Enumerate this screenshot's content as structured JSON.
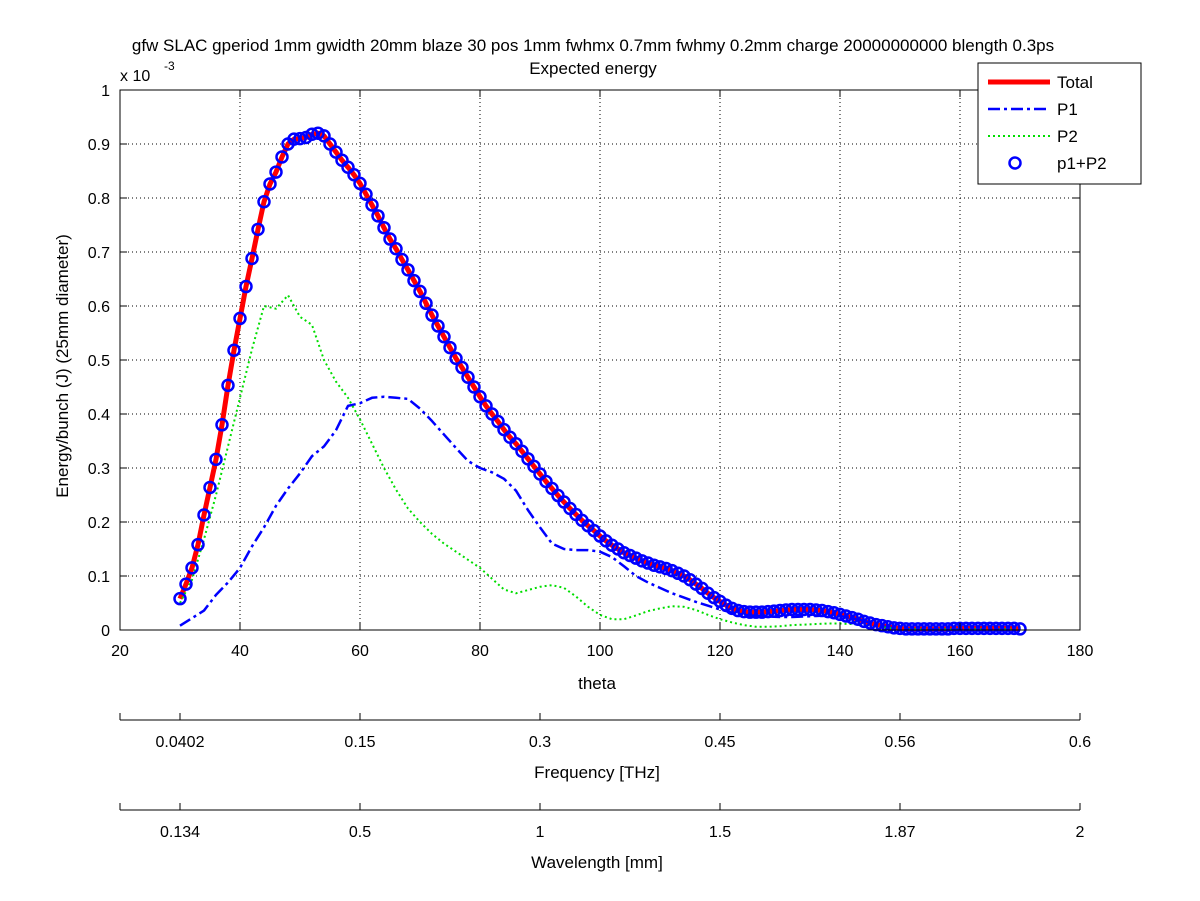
{
  "chart_data": {
    "type": "line",
    "title": "gfw SLAC gperiod 1mm gwidth 20mm blaze 30 pos 1mm fwhmx 0.7mm fwhmy 0.2mm charge 20000000000 blength 0.3ps",
    "subtitle": "Expected energy",
    "xlabel": "theta",
    "ylabel": "Energy/bunch (J) (25mm diameter)",
    "y_exponent_label": "x 10",
    "y_exponent_power": "-3",
    "xlim": [
      20,
      180
    ],
    "ylim": [
      0,
      1
    ],
    "grid": true,
    "legend_position": "top-right",
    "x_ticks": [
      "20",
      "40",
      "60",
      "80",
      "100",
      "120",
      "140",
      "160",
      "180"
    ],
    "y_ticks": [
      "0",
      "0.1",
      "0.2",
      "0.3",
      "0.4",
      "0.5",
      "0.6",
      "0.7",
      "0.8",
      "0.9",
      "1"
    ],
    "secondary_axes": [
      {
        "label": "Frequency [THz]",
        "ticks": [
          {
            "theta": 30,
            "label": "0.0402"
          },
          {
            "theta": 60,
            "label": "0.15"
          },
          {
            "theta": 90,
            "label": "0.3"
          },
          {
            "theta": 120,
            "label": "0.45"
          },
          {
            "theta": 150,
            "label": "0.56"
          },
          {
            "theta": 180,
            "label": "0.6"
          }
        ]
      },
      {
        "label": "Wavelength [mm]",
        "ticks": [
          {
            "theta": 30,
            "label": "0.134"
          },
          {
            "theta": 60,
            "label": "0.5"
          },
          {
            "theta": 90,
            "label": "1"
          },
          {
            "theta": 120,
            "label": "1.5"
          },
          {
            "theta": 150,
            "label": "1.87"
          },
          {
            "theta": 180,
            "label": "2"
          }
        ]
      }
    ],
    "series": [
      {
        "name": "Total",
        "style": "solid-thick",
        "color": "#ff0000",
        "x": [
          30,
          31,
          32,
          33,
          34,
          35,
          36,
          37,
          38,
          39,
          40,
          41,
          42,
          43,
          44,
          45,
          46,
          47,
          48,
          49,
          50,
          51,
          52,
          53,
          54,
          55,
          56,
          57,
          58,
          59,
          60,
          61,
          62,
          63,
          64,
          65,
          66,
          67,
          68,
          69,
          70,
          71,
          72,
          73,
          74,
          75,
          76,
          77,
          78,
          79,
          80,
          81,
          82,
          83,
          84,
          85,
          86,
          87,
          88,
          89,
          90,
          91,
          92,
          93,
          94,
          95,
          96,
          97,
          98,
          99,
          100,
          101,
          102,
          103,
          104,
          105,
          106,
          107,
          108,
          109,
          110,
          111,
          112,
          113,
          114,
          115,
          116,
          117,
          118,
          119,
          120,
          121,
          122,
          123,
          124,
          125,
          126,
          127,
          128,
          129,
          130,
          131,
          132,
          133,
          134,
          135,
          136,
          137,
          138,
          139,
          140,
          141,
          142,
          143,
          144,
          145,
          146,
          147,
          148,
          149,
          150,
          151,
          152,
          153,
          154,
          155,
          156,
          157,
          158,
          159,
          160,
          161,
          162,
          163,
          164,
          165,
          166,
          167,
          168,
          169,
          170
        ],
        "y": [
          0.058,
          0.085,
          0.115,
          0.158,
          0.213,
          0.264,
          0.316,
          0.38,
          0.453,
          0.518,
          0.577,
          0.636,
          0.688,
          0.742,
          0.793,
          0.826,
          0.848,
          0.876,
          0.9,
          0.909,
          0.91,
          0.912,
          0.918,
          0.92,
          0.915,
          0.9,
          0.885,
          0.87,
          0.857,
          0.843,
          0.827,
          0.807,
          0.787,
          0.767,
          0.745,
          0.724,
          0.706,
          0.686,
          0.667,
          0.647,
          0.627,
          0.605,
          0.583,
          0.563,
          0.543,
          0.523,
          0.503,
          0.486,
          0.468,
          0.45,
          0.432,
          0.415,
          0.4,
          0.386,
          0.371,
          0.357,
          0.345,
          0.331,
          0.317,
          0.303,
          0.289,
          0.275,
          0.262,
          0.249,
          0.237,
          0.225,
          0.214,
          0.203,
          0.193,
          0.184,
          0.174,
          0.165,
          0.157,
          0.15,
          0.143,
          0.138,
          0.133,
          0.128,
          0.124,
          0.12,
          0.117,
          0.114,
          0.11,
          0.105,
          0.1,
          0.093,
          0.085,
          0.077,
          0.068,
          0.06,
          0.053,
          0.046,
          0.04,
          0.036,
          0.034,
          0.033,
          0.033,
          0.033,
          0.034,
          0.035,
          0.036,
          0.037,
          0.038,
          0.038,
          0.038,
          0.038,
          0.037,
          0.036,
          0.034,
          0.032,
          0.029,
          0.026,
          0.023,
          0.02,
          0.016,
          0.013,
          0.01,
          0.008,
          0.006,
          0.004,
          0.003,
          0.002,
          0.002,
          0.002,
          0.002,
          0.002,
          0.002,
          0.002,
          0.002,
          0.003,
          0.003,
          0.003,
          0.003,
          0.003,
          0.003,
          0.003,
          0.003,
          0.003,
          0.003,
          0.003,
          0.002
        ]
      },
      {
        "name": "P1",
        "style": "dashdot",
        "color": "#0000ff",
        "x": [
          30,
          32,
          34,
          36,
          38,
          40,
          42,
          44,
          46,
          48,
          50,
          52,
          54,
          56,
          58,
          60,
          62,
          64,
          66,
          68,
          70,
          72,
          74,
          76,
          78,
          80,
          82,
          84,
          86,
          88,
          90,
          92,
          94,
          96,
          98,
          100,
          102,
          104,
          106,
          108,
          110,
          112,
          114,
          116,
          118,
          120,
          122,
          124,
          126,
          128,
          130,
          132,
          134,
          136,
          138,
          140,
          142,
          144,
          146,
          148,
          150,
          152,
          154,
          156,
          158,
          160,
          162,
          164,
          166,
          168,
          170
        ],
        "y": [
          0.008,
          0.022,
          0.036,
          0.065,
          0.088,
          0.115,
          0.155,
          0.19,
          0.23,
          0.262,
          0.29,
          0.322,
          0.34,
          0.37,
          0.415,
          0.42,
          0.43,
          0.432,
          0.43,
          0.428,
          0.41,
          0.387,
          0.362,
          0.337,
          0.313,
          0.3,
          0.292,
          0.28,
          0.258,
          0.222,
          0.19,
          0.16,
          0.15,
          0.148,
          0.148,
          0.145,
          0.135,
          0.118,
          0.1,
          0.088,
          0.078,
          0.068,
          0.06,
          0.052,
          0.045,
          0.038,
          0.032,
          0.028,
          0.026,
          0.025,
          0.024,
          0.024,
          0.025,
          0.026,
          0.027,
          0.026,
          0.022,
          0.017,
          0.01,
          0.005,
          0.002,
          0.001,
          0.001,
          0.001,
          0.001,
          0.001,
          0.001,
          0.001,
          0.001,
          0.001,
          0.001
        ]
      },
      {
        "name": "P2",
        "style": "dotted",
        "color": "#00dd00",
        "x": [
          30,
          32,
          34,
          36,
          38,
          40,
          42,
          44,
          46,
          48,
          50,
          52,
          54,
          56,
          58,
          60,
          62,
          64,
          66,
          68,
          70,
          72,
          74,
          76,
          78,
          80,
          82,
          84,
          86,
          88,
          90,
          92,
          94,
          96,
          98,
          100,
          102,
          104,
          106,
          108,
          110,
          112,
          114,
          116,
          118,
          120,
          122,
          124,
          126,
          128,
          130,
          132,
          134,
          136,
          138,
          140,
          142,
          144,
          146,
          148,
          150,
          152,
          154,
          156,
          158,
          160,
          162,
          164,
          166,
          168,
          170
        ],
        "y": [
          0.05,
          0.093,
          0.168,
          0.25,
          0.34,
          0.43,
          0.52,
          0.6,
          0.595,
          0.62,
          0.58,
          0.565,
          0.5,
          0.46,
          0.43,
          0.39,
          0.345,
          0.3,
          0.26,
          0.225,
          0.2,
          0.178,
          0.16,
          0.145,
          0.13,
          0.115,
          0.095,
          0.075,
          0.068,
          0.074,
          0.08,
          0.083,
          0.078,
          0.062,
          0.043,
          0.028,
          0.02,
          0.02,
          0.027,
          0.035,
          0.04,
          0.044,
          0.043,
          0.037,
          0.028,
          0.02,
          0.014,
          0.009,
          0.006,
          0.006,
          0.007,
          0.009,
          0.01,
          0.011,
          0.012,
          0.012,
          0.011,
          0.009,
          0.007,
          0.004,
          0.002,
          0.001,
          0.001,
          0.001,
          0.001,
          0.001,
          0.001,
          0.001,
          0.001,
          0.001,
          0.001
        ]
      },
      {
        "name": "p1+P2",
        "style": "circle-markers",
        "color": "#0000ff",
        "x": [
          30,
          31,
          32,
          33,
          34,
          35,
          36,
          37,
          38,
          39,
          40,
          41,
          42,
          43,
          44,
          45,
          46,
          47,
          48,
          49,
          50,
          51,
          52,
          53,
          54,
          55,
          56,
          57,
          58,
          59,
          60,
          61,
          62,
          63,
          64,
          65,
          66,
          67,
          68,
          69,
          70,
          71,
          72,
          73,
          74,
          75,
          76,
          77,
          78,
          79,
          80,
          81,
          82,
          83,
          84,
          85,
          86,
          87,
          88,
          89,
          90,
          91,
          92,
          93,
          94,
          95,
          96,
          97,
          98,
          99,
          100,
          101,
          102,
          103,
          104,
          105,
          106,
          107,
          108,
          109,
          110,
          111,
          112,
          113,
          114,
          115,
          116,
          117,
          118,
          119,
          120,
          121,
          122,
          123,
          124,
          125,
          126,
          127,
          128,
          129,
          130,
          131,
          132,
          133,
          134,
          135,
          136,
          137,
          138,
          139,
          140,
          141,
          142,
          143,
          144,
          145,
          146,
          147,
          148,
          149,
          150,
          151,
          152,
          153,
          154,
          155,
          156,
          157,
          158,
          159,
          160,
          161,
          162,
          163,
          164,
          165,
          166,
          167,
          168,
          169,
          170
        ],
        "y": [
          0.058,
          0.085,
          0.115,
          0.158,
          0.213,
          0.264,
          0.316,
          0.38,
          0.453,
          0.518,
          0.577,
          0.636,
          0.688,
          0.742,
          0.793,
          0.826,
          0.848,
          0.876,
          0.9,
          0.909,
          0.91,
          0.912,
          0.918,
          0.92,
          0.915,
          0.9,
          0.885,
          0.87,
          0.857,
          0.843,
          0.827,
          0.807,
          0.787,
          0.767,
          0.745,
          0.724,
          0.706,
          0.686,
          0.667,
          0.647,
          0.627,
          0.605,
          0.583,
          0.563,
          0.543,
          0.523,
          0.503,
          0.486,
          0.468,
          0.45,
          0.432,
          0.415,
          0.4,
          0.386,
          0.371,
          0.357,
          0.345,
          0.331,
          0.317,
          0.303,
          0.289,
          0.275,
          0.262,
          0.249,
          0.237,
          0.225,
          0.214,
          0.203,
          0.193,
          0.184,
          0.174,
          0.165,
          0.157,
          0.15,
          0.143,
          0.138,
          0.133,
          0.128,
          0.124,
          0.12,
          0.117,
          0.114,
          0.11,
          0.105,
          0.1,
          0.093,
          0.085,
          0.077,
          0.068,
          0.06,
          0.053,
          0.046,
          0.04,
          0.036,
          0.034,
          0.033,
          0.033,
          0.033,
          0.034,
          0.035,
          0.036,
          0.037,
          0.038,
          0.038,
          0.038,
          0.038,
          0.037,
          0.036,
          0.034,
          0.032,
          0.029,
          0.026,
          0.023,
          0.02,
          0.016,
          0.013,
          0.01,
          0.008,
          0.006,
          0.004,
          0.003,
          0.002,
          0.002,
          0.002,
          0.002,
          0.002,
          0.002,
          0.002,
          0.002,
          0.003,
          0.003,
          0.003,
          0.003,
          0.003,
          0.003,
          0.003,
          0.003,
          0.003,
          0.003,
          0.003,
          0.002
        ]
      }
    ]
  }
}
